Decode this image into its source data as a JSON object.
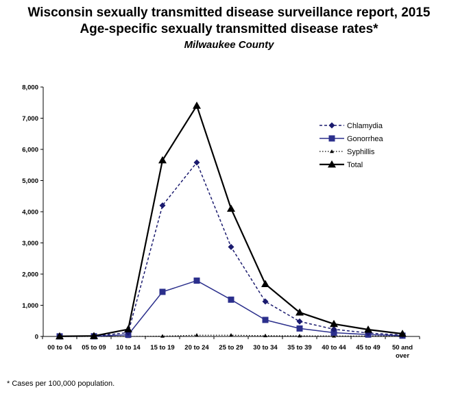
{
  "header": {
    "title": "Wisconsin sexually transmitted disease surveillance report, 2015",
    "subtitle": "Age-specific sexually transmitted disease rates*",
    "location": "Milwaukee County"
  },
  "footnote": "* Cases per 100,000 population.",
  "chart_data": {
    "type": "line",
    "title": "Age-specific sexually transmitted disease rates*",
    "categories": [
      "00 to 04",
      "05 to 09",
      "10 to 14",
      "15 to 19",
      "20 to 24",
      "25 to 29",
      "30 to 34",
      "35 to 39",
      "40 to 44",
      "45 to 49",
      "50 and over"
    ],
    "y_ticks": [
      "0",
      "1,000",
      "2,000",
      "3,000",
      "4,000",
      "5,000",
      "6,000",
      "7,000",
      "8,000"
    ],
    "ylim": [
      0,
      8000
    ],
    "grid": false,
    "legend_position": "top-right",
    "series": [
      {
        "name": "Chlamydia",
        "marker": "diamond",
        "dash": "dashed",
        "color": "#1a1a6e",
        "values": [
          5,
          15,
          120,
          4200,
          5580,
          2870,
          1120,
          480,
          230,
          110,
          45
        ]
      },
      {
        "name": "Gonorrhea",
        "marker": "square",
        "dash": "solid",
        "color": "#2b2f8c",
        "values": [
          3,
          5,
          55,
          1430,
          1790,
          1180,
          530,
          255,
          120,
          60,
          25
        ]
      },
      {
        "name": "Syphillis",
        "marker": "triangle",
        "dash": "dotted",
        "color": "#000000",
        "values": [
          0,
          0,
          0,
          10,
          40,
          40,
          25,
          20,
          15,
          15,
          10
        ]
      },
      {
        "name": "Total",
        "marker": "triangle",
        "dash": "solid",
        "color": "#000000",
        "values": [
          5,
          15,
          230,
          5650,
          7400,
          4100,
          1680,
          770,
          400,
          220,
          85
        ]
      }
    ]
  }
}
